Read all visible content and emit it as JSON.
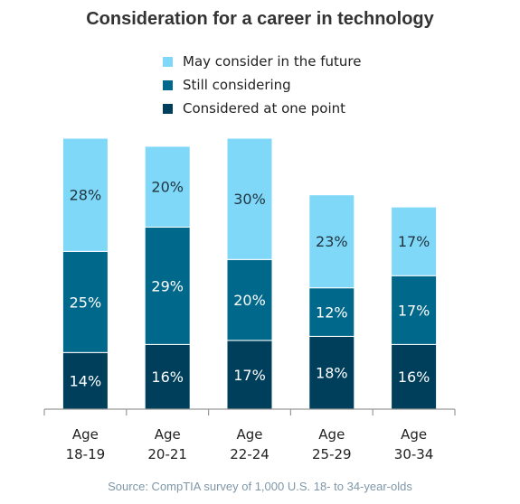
{
  "chart_data": {
    "type": "bar",
    "stacked": true,
    "title": "Consideration for a career in technology",
    "categories": [
      [
        "Age",
        "18-19"
      ],
      [
        "Age",
        "20-21"
      ],
      [
        "Age",
        "22-24"
      ],
      [
        "Age",
        "25-29"
      ],
      [
        "Age",
        "30-34"
      ]
    ],
    "series": [
      {
        "name": "Considered at one point",
        "values": [
          14,
          16,
          17,
          18,
          16
        ],
        "labels": [
          "14%",
          "16%",
          "17%",
          "18%",
          "16%"
        ],
        "color": "#003f5c"
      },
      {
        "name": "Still considering",
        "values": [
          25,
          29,
          20,
          12,
          17
        ],
        "labels": [
          "25%",
          "29%",
          "20%",
          "12%",
          "17%"
        ],
        "color": "#00688b"
      },
      {
        "name": "May consider in the future",
        "values": [
          28,
          20,
          30,
          23,
          17
        ],
        "labels": [
          "28%",
          "20%",
          "30%",
          "23%",
          "17%"
        ],
        "color": "#80d8f8"
      }
    ],
    "legend_order": [
      2,
      1,
      0
    ],
    "legend_position": "top",
    "ylim": [
      0,
      67
    ],
    "grid": false,
    "source": "Source: CompTIA survey of 1,000 U.S. 18- to 34-year-olds"
  }
}
